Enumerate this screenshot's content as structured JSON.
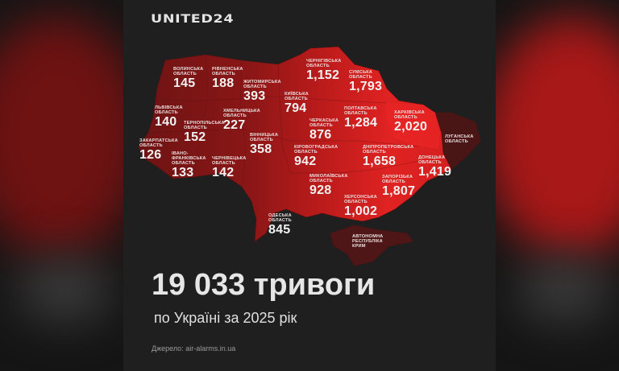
{
  "brand": "UNITED24",
  "headline": "19 033 тривоги",
  "subtitle": "по Україні за 2025 рік",
  "source": "Джерело: air-alarms.in.ua",
  "region_suffix": "ОБЛАСТЬ",
  "colors": {
    "background": "#1f1f1f",
    "low": "#7a1616",
    "mid": "#b01a1a",
    "high": "#e62424",
    "occupied": "#4a1414"
  },
  "regions": [
    {
      "name": "Волинська",
      "value": "145"
    },
    {
      "name": "Рівненська",
      "value": "188"
    },
    {
      "name": "Житомирська",
      "value": "393"
    },
    {
      "name": "Київська",
      "value": "794"
    },
    {
      "name": "Чернігівська",
      "value": "1,152"
    },
    {
      "name": "Сумська",
      "value": "1,793"
    },
    {
      "name": "Полтавська",
      "value": "1,284"
    },
    {
      "name": "Харківська",
      "value": "2,020"
    },
    {
      "name": "Луганська",
      "value": null
    },
    {
      "name": "Черкаська",
      "value": "876"
    },
    {
      "name": "Львівська",
      "value": "140"
    },
    {
      "name": "Тернопільська",
      "value": "152"
    },
    {
      "name": "Хмельницька",
      "value": "227"
    },
    {
      "name": "Вінницька",
      "value": "358"
    },
    {
      "name": "Закарпатська",
      "value": "126"
    },
    {
      "name": "Івано-Франківська",
      "value": "133"
    },
    {
      "name": "Чернівецька",
      "value": "142"
    },
    {
      "name": "Кіровоградська",
      "value": "942"
    },
    {
      "name": "Дніпропетровська",
      "value": "1,658"
    },
    {
      "name": "Донецька",
      "value": "1,419"
    },
    {
      "name": "Миколаївська",
      "value": "928"
    },
    {
      "name": "Запорізька",
      "value": "1,807"
    },
    {
      "name": "Херсонська",
      "value": "1,002"
    },
    {
      "name": "Одеська",
      "value": "845"
    }
  ],
  "crimea": {
    "line1": "АВТОНОМНА",
    "line2": "РЕСПУБЛІКА",
    "line3": "КРИМ"
  },
  "ivano_split": {
    "line1": "ІВАНО-",
    "line2": "ФРАНКІВСЬКА"
  }
}
